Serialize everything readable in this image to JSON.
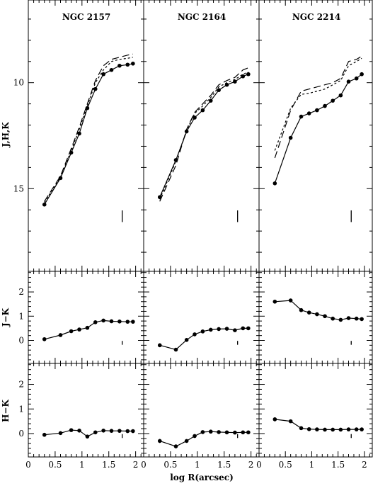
{
  "chart_data": {
    "type": "line",
    "xlabel": "log R(arcsec)",
    "x_ticks": [
      "0",
      "0.5",
      "1",
      "1.5",
      "2"
    ],
    "xlim": [
      0,
      2.15
    ],
    "row_ylabels": [
      "J,H,K",
      "J−K",
      "H−K"
    ],
    "row_ylims": [
      [
        18.9,
        6.1
      ],
      [
        -0.95,
        2.85
      ],
      [
        -0.95,
        2.85
      ]
    ],
    "row_ticks": [
      [
        "10",
        "15"
      ],
      [
        "0",
        "1",
        "2"
      ],
      [
        "0",
        "1",
        "2"
      ]
    ],
    "panels": [
      {
        "title": "NGC 2157",
        "x": [
          0.3,
          0.6,
          0.8,
          0.95,
          1.1,
          1.25,
          1.4,
          1.55,
          1.7,
          1.85,
          1.95
        ],
        "mags": {
          "K": [
            15.75,
            14.5,
            13.3,
            12.4,
            11.2,
            10.3,
            9.6,
            9.4,
            9.2,
            9.15,
            9.1
          ],
          "H": [
            15.6,
            14.4,
            13.1,
            12.1,
            11.0,
            9.9,
            9.2,
            8.9,
            8.8,
            8.7,
            8.65
          ],
          "J": [
            15.65,
            14.45,
            13.2,
            12.2,
            11.1,
            10.0,
            9.4,
            9.0,
            8.9,
            8.85,
            8.8
          ]
        },
        "J_K": [
          0.05,
          0.22,
          0.38,
          0.45,
          0.52,
          0.75,
          0.82,
          0.79,
          0.78,
          0.77,
          0.77
        ],
        "H_K": [
          -0.05,
          0.02,
          0.14,
          0.12,
          -0.12,
          0.05,
          0.12,
          0.11,
          0.11,
          0.1,
          0.1
        ]
      },
      {
        "title": "NGC 2164",
        "x": [
          0.3,
          0.6,
          0.8,
          0.95,
          1.1,
          1.25,
          1.4,
          1.55,
          1.7,
          1.85,
          1.95
        ],
        "mags": {
          "K": [
            15.4,
            13.65,
            12.3,
            11.65,
            11.3,
            10.85,
            10.35,
            10.1,
            9.95,
            9.7,
            9.6
          ],
          "H": [
            15.6,
            13.9,
            12.2,
            11.4,
            11.0,
            10.6,
            10.1,
            9.9,
            9.75,
            9.4,
            9.3
          ],
          "J": [
            15.5,
            13.7,
            12.25,
            11.45,
            11.1,
            10.7,
            10.2,
            10.0,
            9.85,
            9.6,
            9.5
          ]
        },
        "J_K": [
          -0.2,
          -0.38,
          0.02,
          0.25,
          0.37,
          0.44,
          0.47,
          0.48,
          0.42,
          0.5,
          0.5
        ],
        "H_K": [
          -0.3,
          -0.52,
          -0.3,
          -0.1,
          0.06,
          0.08,
          0.06,
          0.05,
          0.04,
          0.05,
          0.05
        ]
      },
      {
        "title": "NGC 2214",
        "x": [
          0.3,
          0.6,
          0.8,
          0.95,
          1.1,
          1.25,
          1.4,
          1.55,
          1.7,
          1.85,
          1.95
        ],
        "mags": {
          "K": [
            14.75,
            12.6,
            11.6,
            11.45,
            11.3,
            11.1,
            10.85,
            10.6,
            9.95,
            9.8,
            9.6
          ],
          "H": [
            13.55,
            11.3,
            10.4,
            10.3,
            10.2,
            10.1,
            10.0,
            9.8,
            9.0,
            8.9,
            8.75
          ],
          "J": [
            13.2,
            11.2,
            10.55,
            10.5,
            10.4,
            10.3,
            10.1,
            9.9,
            9.2,
            9.0,
            8.85
          ]
        },
        "J_K": [
          1.6,
          1.65,
          1.25,
          1.15,
          1.08,
          1.0,
          0.9,
          0.85,
          0.92,
          0.9,
          0.88
        ],
        "H_K": [
          0.58,
          0.5,
          0.22,
          0.18,
          0.17,
          0.16,
          0.16,
          0.16,
          0.17,
          0.17,
          0.17
        ]
      }
    ],
    "error_bar": {
      "x": 1.75,
      "top_row_sizes_mag": [
        0.55,
        0.55,
        0.55
      ],
      "color_row_size": 0.16
    }
  }
}
